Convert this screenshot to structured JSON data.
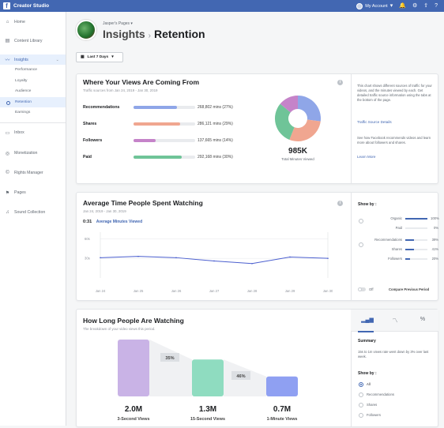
{
  "topbar": {
    "app_title": "Creator Studio",
    "account_label": "My Account"
  },
  "sidebar": {
    "items": [
      {
        "label": "Home",
        "icon": "home-icon"
      },
      {
        "label": "Content Library",
        "icon": "library-icon"
      },
      {
        "label": "Insights",
        "icon": "insights-icon"
      },
      {
        "label": "Inbox",
        "icon": "inbox-icon"
      },
      {
        "label": "Monetization",
        "icon": "monetization-icon"
      },
      {
        "label": "Rights Manager",
        "icon": "rights-icon"
      },
      {
        "label": "Pages",
        "icon": "flag-icon"
      },
      {
        "label": "Sound Collection",
        "icon": "sound-icon"
      }
    ],
    "insights_sub": [
      "Performance",
      "Loyalty",
      "Audience",
      "Retention",
      "Earnings"
    ]
  },
  "header": {
    "page_name": "Jasper's Pages",
    "section": "Insights",
    "current": "Retention"
  },
  "date_filter": {
    "label": "Last 7 Days"
  },
  "sources_card": {
    "title": "Where Your Views Are Coming From",
    "subtitle": "Traffic sources from Jan 24, 2019 - Jan 30, 2019",
    "rows": [
      {
        "label": "Recommendations",
        "value": "268,802 mins (27%)",
        "pct": 0.27,
        "color": "#8fa6e8"
      },
      {
        "label": "Shares",
        "value": "286,121 mins (29%)",
        "pct": 0.29,
        "color": "#f0a690"
      },
      {
        "label": "Followers",
        "value": "137,665 mins (14%)",
        "pct": 0.14,
        "color": "#c583c9"
      },
      {
        "label": "Paid",
        "value": "292,168 mins (30%)",
        "pct": 0.3,
        "color": "#6fc498"
      }
    ],
    "donut_total": "985K",
    "donut_label": "Total Minutes Viewed",
    "side_text": "This chart shows different sources of traffic for your videos, and the minutes viewed by each. Get detailed traffic source information using the tabs at the bottom of the page.",
    "side_link": "Traffic Source Details",
    "side_text2": "See how Facebook recommends videos and learn more about followers and shares.",
    "side_link2": "Learn More"
  },
  "avg_card": {
    "title": "Average Time People Spent Watching",
    "subtitle": "Jan 24, 2019 - Jan 30, 2019",
    "current_value": "0:31",
    "metric_label": "Average Minutes Viewed",
    "show_by": "Show by :",
    "filters_a": [
      {
        "label": "Organic",
        "value": "100%",
        "pct": 1.0
      },
      {
        "label": "Paid",
        "value": "0%",
        "pct": 0.0
      }
    ],
    "filters_b": [
      {
        "label": "Recommendations",
        "value": "39%",
        "pct": 0.39
      },
      {
        "label": "Shares",
        "value": "41%",
        "pct": 0.41
      },
      {
        "label": "Followers",
        "value": "20%",
        "pct": 0.2
      }
    ],
    "toggle_off": "Off",
    "toggle_label": "Compare Previous Period"
  },
  "chart_data": {
    "type": "line",
    "x": [
      "Jan 24",
      "Jan 25",
      "Jan 26",
      "Jan 27",
      "Jan 28",
      "Jan 29",
      "Jan 30"
    ],
    "ylabels": [
      "60s",
      "30s"
    ],
    "ylim": [
      0,
      70
    ],
    "series": [
      {
        "name": "Average Minutes Viewed",
        "values": [
          31,
          33,
          31,
          26,
          22,
          32,
          30
        ]
      }
    ],
    "color": "#4b5fcf"
  },
  "watch_card": {
    "title": "How Long People Are Watching",
    "subtitle": "The breakdown of your video views this period.",
    "bars": [
      {
        "value": "2.0M",
        "label": "3-Second Views",
        "num": 2.0,
        "color": "#c9b3e6"
      },
      {
        "value": "1.3M",
        "label": "15-Second Views",
        "num": 1.3,
        "color": "#8fdcc0"
      },
      {
        "value": "0.7M",
        "label": "1-Minute Views",
        "num": 0.7,
        "color": "#8fa0f2"
      }
    ],
    "dropoffs": [
      "35%",
      "46%"
    ],
    "summary_title": "Summary",
    "summary_text": "15s to 1m views rate went down by 3% over last week.",
    "show_by": "Show by :",
    "options": [
      "All",
      "Recommendations",
      "Shares",
      "Followers"
    ]
  }
}
